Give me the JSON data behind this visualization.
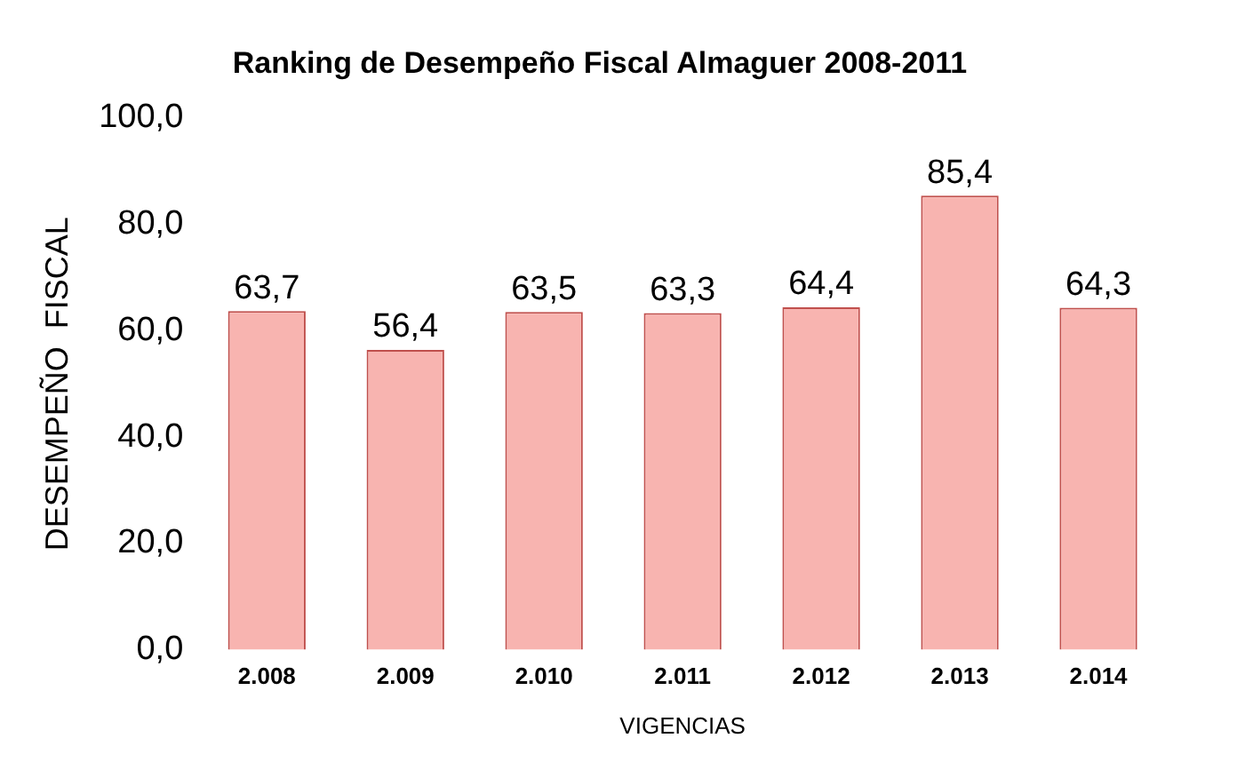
{
  "chart_data": {
    "type": "bar",
    "title": "Ranking de Desempeño Fiscal Almaguer 2008-2011",
    "xlabel": "VIGENCIAS",
    "ylabel": "DESEMPEÑO  FISCAL",
    "categories": [
      "2.008",
      "2.009",
      "2.010",
      "2.011",
      "2.012",
      "2.013",
      "2.014"
    ],
    "values": [
      63.7,
      56.4,
      63.5,
      63.3,
      64.4,
      85.4,
      64.3
    ],
    "value_labels": [
      "63,7",
      "56,4",
      "63,5",
      "63,3",
      "64,4",
      "85,4",
      "64,3"
    ],
    "color": "#f8b4b0",
    "ylim": [
      0,
      100
    ],
    "yticks": [
      {
        "value": 0,
        "label": "0,0"
      },
      {
        "value": 20,
        "label": "20,0"
      },
      {
        "value": 40,
        "label": "40,0"
      },
      {
        "value": 60,
        "label": "60,0"
      },
      {
        "value": 80,
        "label": "80,0"
      },
      {
        "value": 100,
        "label": "100,0"
      }
    ],
    "grid": false,
    "legend": false
  }
}
